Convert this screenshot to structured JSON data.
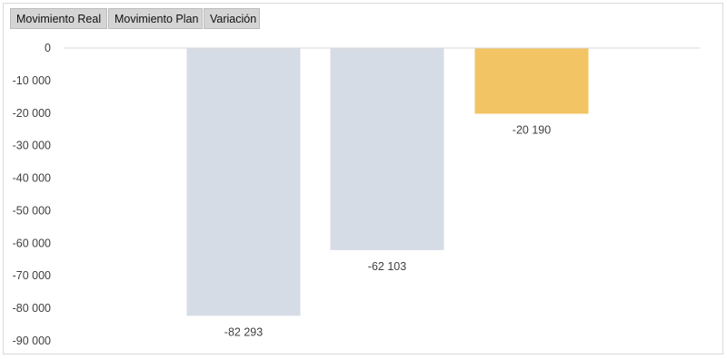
{
  "field_buttons": [
    "Movimiento Real",
    "Movimiento Plan",
    "Variación"
  ],
  "chart_data": {
    "type": "bar",
    "categories": [
      "",
      "",
      ""
    ],
    "values": [
      -82293,
      -62103,
      -20190
    ],
    "data_labels": [
      "-82 293",
      "-62 103",
      "-20 190"
    ],
    "bar_colors": [
      "#d6dce5",
      "#d6dce5",
      "#f2c464"
    ],
    "ylim": [
      -90000,
      0
    ],
    "yticks": [
      0,
      -10000,
      -20000,
      -30000,
      -40000,
      -50000,
      -60000,
      -70000,
      -80000,
      -90000
    ],
    "ytick_labels": [
      "0",
      "-10 000",
      "-20 000",
      "-30 000",
      "-40 000",
      "-50 000",
      "-60 000",
      "-70 000",
      "-80 000",
      "-90 000"
    ],
    "title": "",
    "xlabel": "",
    "ylabel": "",
    "grid": false,
    "legend": "none",
    "axis_line_color": "#d9d9d9"
  }
}
